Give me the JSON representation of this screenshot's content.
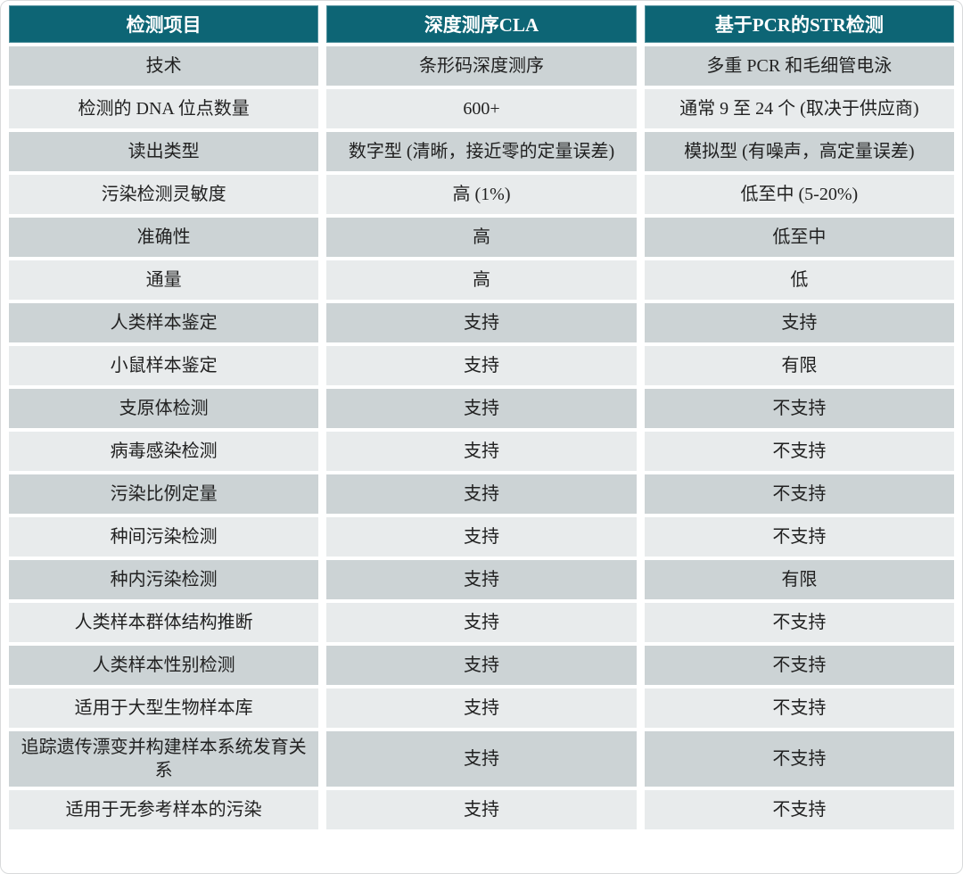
{
  "colors": {
    "header_bg": "#0d6575",
    "header_text": "#ffffff",
    "row_dark": "#ccd3d5",
    "row_light": "#e8ebec",
    "cell_text": "#212121"
  },
  "chart_data": {
    "type": "table",
    "columns": [
      "检测项目",
      "深度测序CLA",
      "基于PCR的STR检测"
    ],
    "rows": [
      [
        "技术",
        "条形码深度测序",
        "多重 PCR 和毛细管电泳"
      ],
      [
        "检测的 DNA 位点数量",
        "600+",
        "通常 9 至 24 个 (取决于供应商)"
      ],
      [
        "读出类型",
        "数字型 (清晰，接近零的定量误差)",
        "模拟型 (有噪声，高定量误差)"
      ],
      [
        "污染检测灵敏度",
        "高 (1%)",
        "低至中 (5-20%)"
      ],
      [
        "准确性",
        "高",
        "低至中"
      ],
      [
        "通量",
        "高",
        "低"
      ],
      [
        "人类样本鉴定",
        "支持",
        "支持"
      ],
      [
        "小鼠样本鉴定",
        "支持",
        "有限"
      ],
      [
        "支原体检测",
        "支持",
        "不支持"
      ],
      [
        "病毒感染检测",
        "支持",
        "不支持"
      ],
      [
        "污染比例定量",
        "支持",
        "不支持"
      ],
      [
        "种间污染检测",
        "支持",
        "不支持"
      ],
      [
        "种内污染检测",
        "支持",
        "有限"
      ],
      [
        "人类样本群体结构推断",
        "支持",
        "不支持"
      ],
      [
        "人类样本性别检测",
        "支持",
        "不支持"
      ],
      [
        "适用于大型生物样本库",
        "支持",
        "不支持"
      ],
      [
        "追踪遗传漂变并构建样本系统发育关系",
        "支持",
        "不支持"
      ],
      [
        "适用于无参考样本的污染",
        "支持",
        "不支持"
      ]
    ]
  }
}
